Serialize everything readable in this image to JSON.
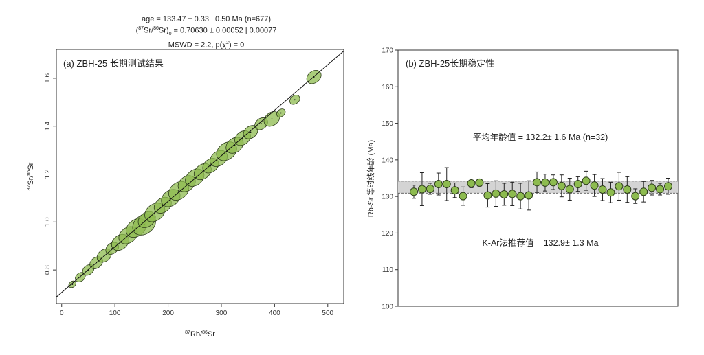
{
  "header": {
    "line1": "age = 133.47 ± 0.33 | 0.50 Ma (n=677)",
    "line2_pre": "(",
    "line2_sr87": "87",
    "line2_srslash": "Sr/",
    "line2_sr86": "86",
    "line2_srend": "Sr)",
    "line2_sub": "0",
    "line2_post": " = 0.70630 ± 0.00052 | 0.00077",
    "line3_pre": "MSWD = 2.2, p(χ",
    "line3_sup": "2",
    "line3_post": ") = 0"
  },
  "chart_data": [
    {
      "type": "scatter",
      "panel_label": "(a) ZBH-25 长期测试结果",
      "xlabel_sup": "87",
      "xlabel_mid": "Rb/",
      "xlabel_sup2": "86",
      "xlabel_end": "Sr",
      "ylabel_sup": "87",
      "ylabel_mid": "Sr/",
      "ylabel_sup2": "86",
      "ylabel_end": "Sr",
      "xlim": [
        -10,
        530
      ],
      "ylim": [
        0.66,
        1.72
      ],
      "xticks": [
        0,
        100,
        200,
        300,
        400,
        500
      ],
      "yticks": [
        0.8,
        1.0,
        1.2,
        1.4,
        1.6
      ],
      "isochron": {
        "intercept": 0.7063,
        "slope": 0.0019
      },
      "point_color": "#8dbb4f",
      "points": [
        {
          "x": 20,
          "y": 0.74,
          "r": 5
        },
        {
          "x": 35,
          "y": 0.77,
          "r": 7
        },
        {
          "x": 50,
          "y": 0.8,
          "r": 8
        },
        {
          "x": 65,
          "y": 0.83,
          "r": 9
        },
        {
          "x": 80,
          "y": 0.86,
          "r": 10
        },
        {
          "x": 95,
          "y": 0.89,
          "r": 9
        },
        {
          "x": 110,
          "y": 0.915,
          "r": 12
        },
        {
          "x": 125,
          "y": 0.945,
          "r": 13
        },
        {
          "x": 140,
          "y": 0.975,
          "r": 14
        },
        {
          "x": 155,
          "y": 0.99,
          "r": 16
        },
        {
          "x": 160,
          "y": 1.01,
          "r": 12
        },
        {
          "x": 175,
          "y": 1.04,
          "r": 14
        },
        {
          "x": 190,
          "y": 1.07,
          "r": 12
        },
        {
          "x": 205,
          "y": 1.1,
          "r": 13
        },
        {
          "x": 220,
          "y": 1.13,
          "r": 14
        },
        {
          "x": 235,
          "y": 1.16,
          "r": 12
        },
        {
          "x": 250,
          "y": 1.185,
          "r": 13
        },
        {
          "x": 265,
          "y": 1.21,
          "r": 12
        },
        {
          "x": 280,
          "y": 1.235,
          "r": 11
        },
        {
          "x": 295,
          "y": 1.265,
          "r": 12
        },
        {
          "x": 310,
          "y": 1.295,
          "r": 14
        },
        {
          "x": 325,
          "y": 1.32,
          "r": 12
        },
        {
          "x": 340,
          "y": 1.35,
          "r": 11
        },
        {
          "x": 355,
          "y": 1.375,
          "r": 10
        },
        {
          "x": 375,
          "y": 1.41,
          "r": 9
        },
        {
          "x": 395,
          "y": 1.43,
          "r": 11
        },
        {
          "x": 412,
          "y": 1.455,
          "r": 6
        },
        {
          "x": 438,
          "y": 1.51,
          "r": 7
        },
        {
          "x": 474,
          "y": 1.605,
          "r": 10
        }
      ]
    },
    {
      "type": "scatter",
      "panel_label": "(b) ZBH-25长期稳定性",
      "ylabel": "Rb-Sr 等时线年龄 (Ma)",
      "ylim": [
        100,
        170
      ],
      "yticks": [
        100,
        110,
        120,
        130,
        140,
        150,
        160,
        170
      ],
      "mean_label": "平均年龄值 = 132.2± 1.6 Ma (n=32)",
      "recommended_label": "K-Ar法推荐值 = 132.9± 1.3 Ma",
      "band": {
        "low": 130.9,
        "high": 134.2
      },
      "point_color": "#8dbb4f",
      "points": [
        {
          "y": 131.3,
          "err": 1.8
        },
        {
          "y": 132.0,
          "err": 4.5
        },
        {
          "y": 132.1,
          "err": 1.5
        },
        {
          "y": 133.4,
          "err": 3.0
        },
        {
          "y": 133.4,
          "err": 4.5
        },
        {
          "y": 131.7,
          "err": 2.0
        },
        {
          "y": 130.1,
          "err": 2.5
        },
        {
          "y": 133.6,
          "err": 1.2
        },
        {
          "y": 133.8,
          "err": 1.0
        },
        {
          "y": 130.3,
          "err": 3.2
        },
        {
          "y": 130.8,
          "err": 3.5
        },
        {
          "y": 130.6,
          "err": 3.0
        },
        {
          "y": 130.7,
          "err": 3.2
        },
        {
          "y": 130.1,
          "err": 3.5
        },
        {
          "y": 130.3,
          "err": 4.0
        },
        {
          "y": 133.9,
          "err": 2.8
        },
        {
          "y": 133.8,
          "err": 2.3
        },
        {
          "y": 133.9,
          "err": 2.0
        },
        {
          "y": 132.9,
          "err": 3.0
        },
        {
          "y": 132.0,
          "err": 3.0
        },
        {
          "y": 133.4,
          "err": 2.0
        },
        {
          "y": 134.3,
          "err": 2.6
        },
        {
          "y": 133.0,
          "err": 3.0
        },
        {
          "y": 131.9,
          "err": 3.0
        },
        {
          "y": 131.1,
          "err": 2.8
        },
        {
          "y": 132.8,
          "err": 3.8
        },
        {
          "y": 131.9,
          "err": 3.5
        },
        {
          "y": 130.1,
          "err": 2.0
        },
        {
          "y": 131.3,
          "err": 2.8
        },
        {
          "y": 132.4,
          "err": 2.0
        },
        {
          "y": 132.0,
          "err": 1.6
        },
        {
          "y": 132.8,
          "err": 2.2
        }
      ]
    }
  ]
}
